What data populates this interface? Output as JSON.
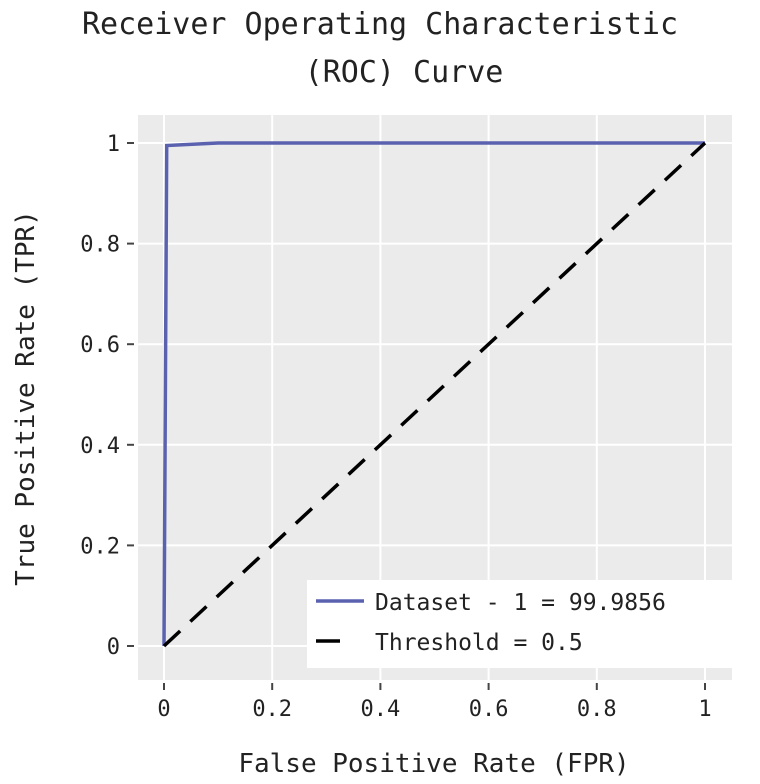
{
  "chart_data": {
    "type": "line",
    "title": "Receiver Operating Characteristic",
    "title_line2": "(ROC) Curve",
    "xlabel": "False Positive Rate (FPR)",
    "ylabel": "True Positive Rate (TPR)",
    "xlim": [
      -0.05,
      1.05
    ],
    "ylim": [
      -0.05,
      1.07
    ],
    "xticks": [
      0,
      0.2,
      0.4,
      0.6,
      0.8,
      1
    ],
    "xtick_labels": [
      "0",
      "0.2",
      "0.4",
      "0.6",
      "0.8",
      "1"
    ],
    "yticks": [
      0,
      0.2,
      0.4,
      0.6,
      0.8,
      1
    ],
    "ytick_labels": [
      "0",
      "0.2",
      "0.4",
      "0.6",
      "0.8",
      "1"
    ],
    "grid": true,
    "legend_position": "bottom-right",
    "series": [
      {
        "name": "Dataset - 1 = 99.9856",
        "color": "#5a62b0",
        "dash": "solid",
        "x": [
          0,
          0.005,
          0.1,
          1
        ],
        "y": [
          0,
          0.995,
          1,
          1
        ]
      },
      {
        "name": "Threshold = 0.5",
        "color": "#000000",
        "dash": "dashed",
        "x": [
          0,
          1
        ],
        "y": [
          0,
          1
        ]
      }
    ],
    "background": "#ebebeb"
  }
}
